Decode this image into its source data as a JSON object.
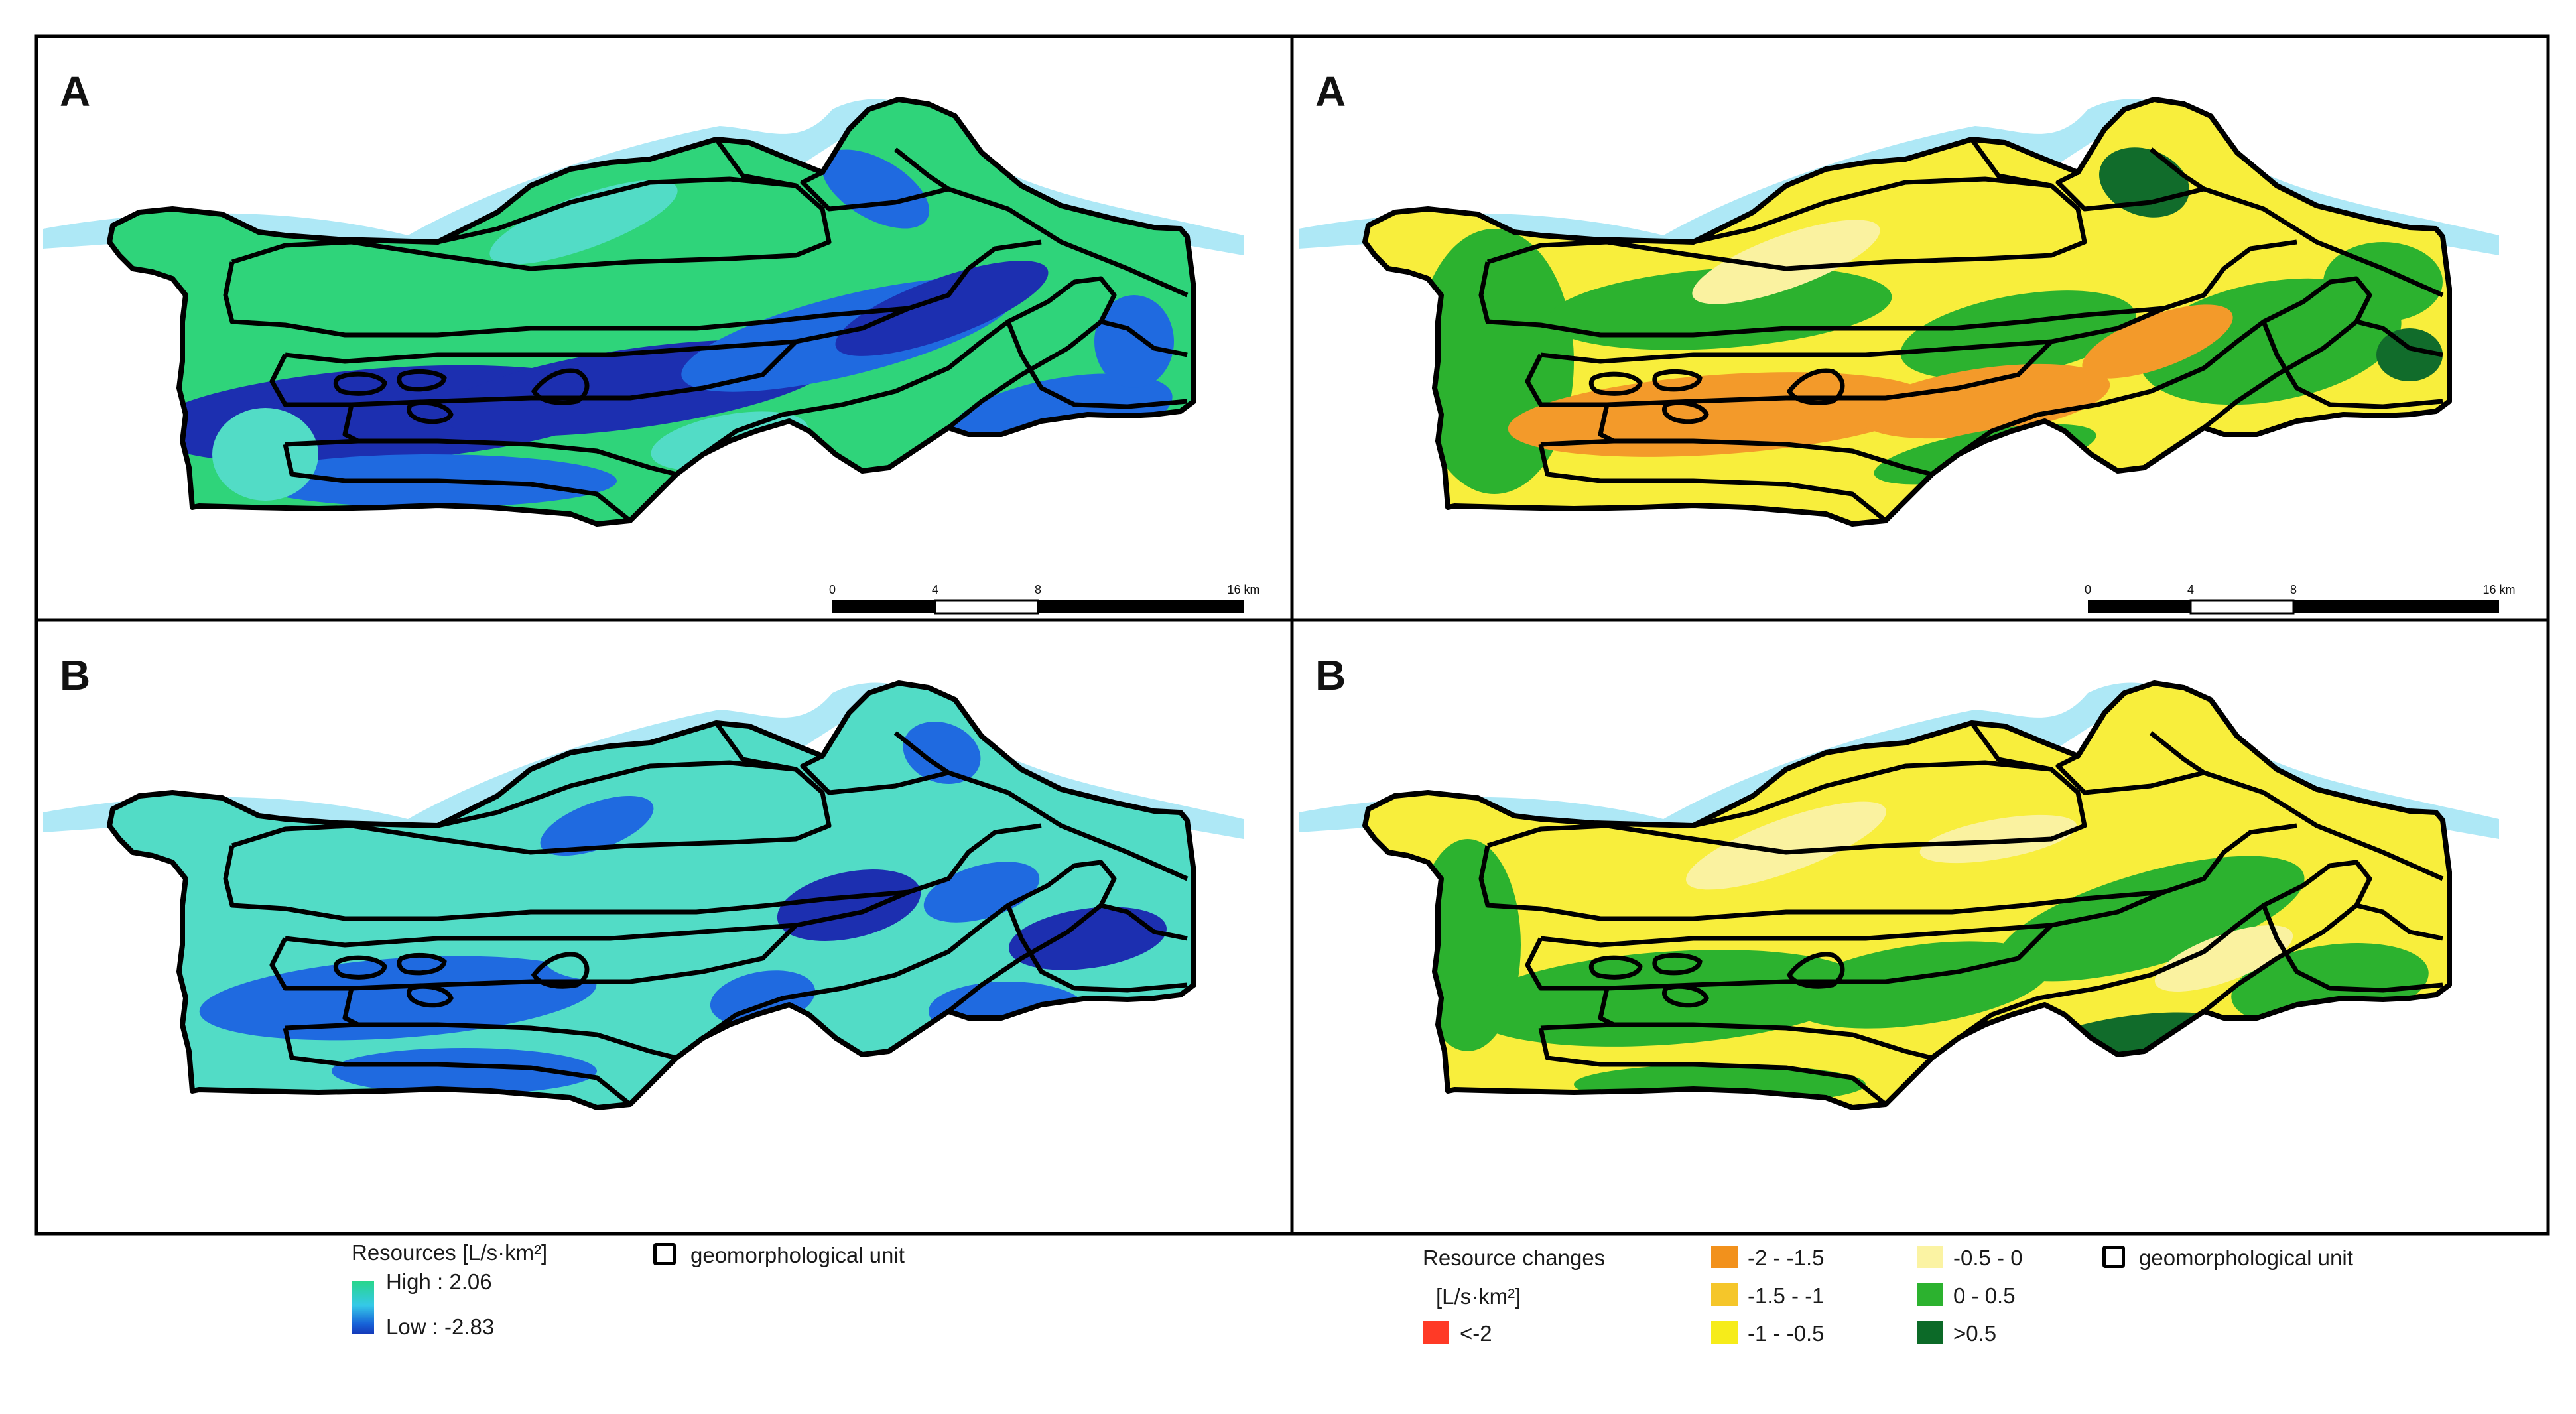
{
  "panels": [
    {
      "id": "tl",
      "label": "A",
      "map": "resources",
      "scale": true
    },
    {
      "id": "tr",
      "label": "A",
      "map": "changes",
      "scale": true
    },
    {
      "id": "bl",
      "label": "B",
      "map": "resources",
      "scale": false
    },
    {
      "id": "br",
      "label": "B",
      "map": "changes",
      "scale": false
    }
  ],
  "scale_bar": {
    "ticks": [
      "0",
      "4",
      "8",
      "16 km"
    ]
  },
  "legend_resources": {
    "title": "Resources [L/s·km²]",
    "high": "High : 2.06",
    "low": "Low : -2.83",
    "colors": {
      "high": "#28d68c",
      "mid": "#35c9e8",
      "low": "#1437b8"
    }
  },
  "legend_unit_left": "geomorphological unit",
  "legend_changes": {
    "title": "Resource changes",
    "unit": "[L/s·km²]",
    "items": [
      {
        "label": "<-2",
        "color": "#ff3a26"
      },
      {
        "label": "-2 - -1.5",
        "color": "#f2911c"
      },
      {
        "label": "-1.5 - -1",
        "color": "#f5c62a"
      },
      {
        "label": "-1 - -0.5",
        "color": "#f6ec1a"
      },
      {
        "label": "-0.5 - 0",
        "color": "#fbf3a3"
      },
      {
        "label": "0 - 0.5",
        "color": "#2cb22f"
      },
      {
        "label": ">0.5",
        "color": "#0c6a28"
      }
    ]
  },
  "legend_unit_right": "geomorphological unit",
  "colors": {
    "river": "#aee8f6",
    "res_green": "#2fd47a",
    "res_teal": "#52dcc6",
    "res_blue": "#1f6ae0",
    "res_darkblue": "#1c2fb0",
    "chg_yellow": "#f8ee3c",
    "chg_lightyellow": "#faf2a0",
    "chg_orange": "#f39a2a",
    "chg_green": "#2cb22f",
    "chg_darkgreen": "#116c2b"
  }
}
